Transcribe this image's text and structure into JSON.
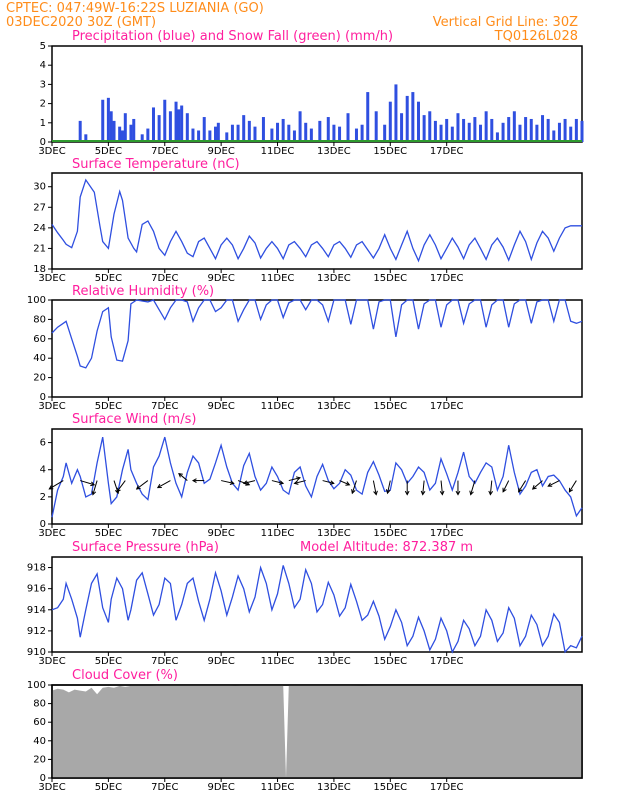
{
  "header": {
    "line1": "CPTEC:  047:49W-16:22S  LUZIANIA (GO)",
    "line2": "03DEC2020 30Z (GMT)",
    "grid_note": "Vertical Grid Line: 30Z",
    "run_id": "TQ0126L028"
  },
  "x_labels": [
    "3DEC",
    "5DEC",
    "7DEC",
    "9DEC",
    "11DEC",
    "13DEC",
    "15DEC",
    "17DEC"
  ],
  "colors": {
    "series": "#2f4fe0",
    "cloud": "#a8a8a8",
    "snow": "#2e9a2e",
    "title": "#ff1f9e",
    "header": "#ff8c1a",
    "wind_arrow": "#000000"
  },
  "chart_data": [
    {
      "type": "bar",
      "title": "Precipitation (blue) and Snow Fall (green) (mm/h)",
      "ylim": [
        0,
        5
      ],
      "yticks": [
        "0",
        "1",
        "2",
        "3",
        "4",
        "5"
      ],
      "series": [
        {
          "name": "Precipitation",
          "x_days": [
            1.0,
            1.2,
            1.8,
            2.0,
            2.1,
            2.2,
            2.4,
            2.5,
            2.6,
            2.8,
            2.9,
            3.2,
            3.4,
            3.6,
            3.8,
            4.0,
            4.2,
            4.4,
            4.5,
            4.6,
            4.8,
            5.0,
            5.2,
            5.4,
            5.6,
            5.8,
            5.9,
            6.2,
            6.4,
            6.6,
            6.8,
            7.0,
            7.2,
            7.5,
            7.8,
            8.0,
            8.2,
            8.4,
            8.6,
            8.8,
            9.0,
            9.2,
            9.5,
            9.8,
            10.0,
            10.2,
            10.5,
            10.8,
            11.0,
            11.2,
            11.5,
            11.8,
            12.0,
            12.2,
            12.4,
            12.6,
            12.8,
            13.0,
            13.2,
            13.4,
            13.6,
            13.8,
            14.0,
            14.2,
            14.4,
            14.6,
            14.8,
            15.0,
            15.2,
            15.4,
            15.6,
            15.8,
            16.0,
            16.2,
            16.4,
            16.6,
            16.8,
            17.0,
            17.2,
            17.4,
            17.6,
            17.8,
            18.0,
            18.2,
            18.4,
            18.6,
            18.8
          ],
          "values": [
            1.1,
            0.4,
            2.2,
            2.3,
            1.6,
            1.1,
            0.8,
            0.6,
            1.5,
            0.9,
            1.2,
            0.4,
            0.7,
            1.8,
            1.4,
            2.2,
            1.6,
            2.1,
            1.7,
            1.9,
            1.5,
            0.7,
            0.6,
            1.3,
            0.6,
            0.8,
            1.0,
            0.5,
            0.9,
            0.9,
            1.4,
            1.1,
            0.8,
            1.3,
            0.7,
            1.0,
            1.2,
            0.9,
            0.6,
            1.6,
            1.0,
            0.7,
            1.1,
            1.3,
            0.9,
            0.8,
            1.5,
            0.7,
            0.9,
            2.6,
            1.6,
            0.9,
            2.1,
            3.0,
            1.5,
            2.4,
            2.6,
            2.1,
            1.4,
            1.6,
            1.1,
            0.9,
            1.2,
            0.8,
            1.5,
            1.2,
            1.0,
            1.3,
            0.9,
            1.6,
            1.2,
            0.5,
            1.0,
            1.3,
            1.6,
            0.9,
            1.3,
            1.2,
            0.9,
            1.4,
            1.2,
            0.6,
            1.0,
            1.2,
            0.8,
            1.2,
            1.1
          ]
        },
        {
          "name": "Snow Fall",
          "x_days": [
            0.0,
            18.8
          ],
          "values": [
            0.0,
            0.0
          ]
        }
      ]
    },
    {
      "type": "line",
      "title": "Surface Temperature (nC)",
      "ylim": [
        18,
        32
      ],
      "yticks": [
        "18",
        "21",
        "24",
        "27",
        "30"
      ],
      "x_days": [
        0.0,
        0.2,
        0.4,
        0.5,
        0.7,
        0.9,
        1.0,
        1.2,
        1.5,
        1.7,
        1.8,
        2.0,
        2.2,
        2.4,
        2.5,
        2.7,
        2.9,
        3.0,
        3.2,
        3.4,
        3.6,
        3.8,
        4.0,
        4.2,
        4.4,
        4.6,
        4.8,
        5.0,
        5.2,
        5.4,
        5.6,
        5.8,
        6.0,
        6.2,
        6.4,
        6.6,
        6.8,
        7.0,
        7.2,
        7.4,
        7.6,
        7.8,
        8.0,
        8.2,
        8.4,
        8.6,
        8.8,
        9.0,
        9.2,
        9.4,
        9.6,
        9.8,
        10.0,
        10.2,
        10.4,
        10.6,
        10.8,
        11.0,
        11.2,
        11.4,
        11.6,
        11.8,
        12.0,
        12.2,
        12.4,
        12.6,
        12.8,
        13.0,
        13.2,
        13.4,
        13.6,
        13.8,
        14.0,
        14.2,
        14.4,
        14.6,
        14.8,
        15.0,
        15.2,
        15.4,
        15.6,
        15.8,
        16.0,
        16.2,
        16.4,
        16.6,
        16.8,
        17.0,
        17.2,
        17.4,
        17.6,
        17.8,
        18.0,
        18.2,
        18.4,
        18.6,
        18.8
      ],
      "values": [
        24.5,
        23.3,
        22.2,
        21.6,
        21.1,
        23.5,
        28.5,
        31.0,
        29.2,
        24.3,
        22.0,
        21.0,
        26.0,
        29.3,
        28.0,
        22.5,
        21.0,
        20.5,
        24.5,
        25.0,
        23.5,
        21.0,
        20.0,
        22.0,
        23.5,
        22.0,
        20.3,
        19.8,
        22.0,
        22.5,
        21.0,
        19.5,
        21.5,
        22.5,
        21.5,
        19.5,
        21.0,
        22.8,
        21.8,
        19.6,
        21.0,
        22.0,
        21.0,
        19.5,
        21.5,
        22.0,
        21.0,
        19.8,
        21.5,
        22.0,
        21.0,
        19.8,
        21.5,
        22.0,
        21.0,
        19.7,
        21.5,
        22.0,
        20.8,
        19.6,
        21.0,
        23.0,
        21.0,
        19.4,
        21.5,
        23.5,
        21.0,
        19.2,
        21.5,
        23.0,
        21.5,
        19.5,
        21.0,
        22.5,
        21.2,
        19.5,
        21.5,
        22.5,
        21.0,
        19.4,
        21.5,
        22.5,
        21.2,
        19.3,
        21.5,
        23.5,
        22.0,
        19.4,
        21.8,
        23.5,
        22.5,
        20.6,
        22.5,
        24.0,
        24.3,
        24.3,
        24.3
      ]
    },
    {
      "type": "line",
      "title": "Relative Humidity (%)",
      "ylim": [
        0,
        100
      ],
      "yticks": [
        "0",
        "20",
        "40",
        "60",
        "80",
        "100"
      ],
      "x_days": [
        0.0,
        0.2,
        0.4,
        0.5,
        0.7,
        0.9,
        1.0,
        1.2,
        1.4,
        1.6,
        1.8,
        2.0,
        2.1,
        2.3,
        2.5,
        2.7,
        2.8,
        3.0,
        3.2,
        3.4,
        3.6,
        3.8,
        4.0,
        4.2,
        4.4,
        4.6,
        4.8,
        5.0,
        5.2,
        5.4,
        5.6,
        5.8,
        6.0,
        6.2,
        6.4,
        6.6,
        6.8,
        7.0,
        7.2,
        7.4,
        7.6,
        7.8,
        8.0,
        8.2,
        8.4,
        8.6,
        8.8,
        9.0,
        9.2,
        9.4,
        9.6,
        9.8,
        10.0,
        10.2,
        10.4,
        10.6,
        10.8,
        11.0,
        11.2,
        11.4,
        11.6,
        11.8,
        12.0,
        12.2,
        12.4,
        12.6,
        12.8,
        13.0,
        13.2,
        13.4,
        13.6,
        13.8,
        14.0,
        14.2,
        14.4,
        14.6,
        14.8,
        15.0,
        15.2,
        15.4,
        15.6,
        15.8,
        16.0,
        16.2,
        16.4,
        16.6,
        16.8,
        17.0,
        17.2,
        17.4,
        17.6,
        17.8,
        18.0,
        18.2,
        18.4,
        18.6,
        18.8
      ],
      "values": [
        66,
        72,
        76,
        78,
        60,
        42,
        32,
        30,
        40,
        68,
        88,
        92,
        62,
        38,
        37,
        58,
        96,
        100,
        99,
        98,
        100,
        90,
        80,
        92,
        100,
        100,
        98,
        78,
        92,
        100,
        100,
        88,
        92,
        100,
        100,
        78,
        90,
        100,
        100,
        80,
        95,
        100,
        100,
        82,
        97,
        100,
        100,
        90,
        100,
        100,
        95,
        78,
        100,
        100,
        100,
        75,
        100,
        100,
        100,
        70,
        98,
        100,
        100,
        62,
        95,
        100,
        100,
        70,
        96,
        100,
        100,
        72,
        95,
        100,
        100,
        76,
        96,
        100,
        100,
        72,
        95,
        100,
        100,
        72,
        96,
        100,
        100,
        76,
        98,
        100,
        100,
        78,
        100,
        100,
        78,
        76,
        78
      ]
    },
    {
      "type": "line",
      "title": "Surface Wind (m/s)",
      "ylim": [
        0,
        7
      ],
      "yticks": [
        "0",
        "2",
        "4",
        "6"
      ],
      "x_days": [
        0.0,
        0.2,
        0.4,
        0.5,
        0.7,
        0.9,
        1.0,
        1.2,
        1.4,
        1.6,
        1.8,
        2.0,
        2.1,
        2.3,
        2.5,
        2.7,
        2.8,
        3.0,
        3.2,
        3.4,
        3.6,
        3.8,
        4.0,
        4.2,
        4.4,
        4.6,
        4.8,
        5.0,
        5.2,
        5.4,
        5.6,
        5.8,
        6.0,
        6.2,
        6.4,
        6.6,
        6.8,
        7.0,
        7.2,
        7.4,
        7.6,
        7.8,
        8.0,
        8.2,
        8.4,
        8.6,
        8.8,
        9.0,
        9.2,
        9.4,
        9.6,
        9.8,
        10.0,
        10.2,
        10.4,
        10.6,
        10.8,
        11.0,
        11.2,
        11.4,
        11.6,
        11.8,
        12.0,
        12.2,
        12.4,
        12.6,
        12.8,
        13.0,
        13.2,
        13.4,
        13.6,
        13.8,
        14.0,
        14.2,
        14.4,
        14.6,
        14.8,
        15.0,
        15.2,
        15.4,
        15.6,
        15.8,
        16.0,
        16.2,
        16.4,
        16.6,
        16.8,
        17.0,
        17.2,
        17.4,
        17.6,
        17.8,
        18.0,
        18.2,
        18.4,
        18.6,
        18.8
      ],
      "values": [
        0.5,
        2.5,
        3.5,
        4.5,
        3.0,
        4.0,
        3.5,
        2.0,
        2.2,
        4.5,
        6.4,
        3.0,
        1.5,
        2.0,
        4.0,
        5.5,
        4.0,
        3.0,
        2.2,
        1.8,
        4.2,
        5.0,
        6.4,
        4.5,
        3.0,
        2.0,
        3.8,
        5.0,
        4.5,
        3.0,
        3.3,
        4.5,
        5.8,
        4.2,
        3.0,
        2.5,
        4.3,
        5.2,
        3.5,
        2.5,
        3.0,
        4.2,
        3.5,
        2.5,
        2.2,
        3.8,
        4.2,
        2.8,
        2.0,
        3.5,
        4.4,
        3.2,
        2.6,
        3.0,
        4.0,
        3.6,
        2.5,
        2.2,
        3.8,
        4.6,
        3.6,
        2.4,
        2.5,
        4.5,
        4.0,
        3.0,
        3.5,
        4.2,
        3.8,
        2.5,
        3.0,
        4.8,
        3.7,
        2.5,
        3.8,
        5.3,
        3.5,
        3.0,
        3.8,
        4.5,
        4.2,
        2.5,
        3.5,
        5.8,
        3.8,
        2.2,
        2.8,
        3.8,
        4.0,
        2.8,
        3.5,
        3.6,
        3.2,
        2.5,
        2.0,
        0.6,
        1.2
      ],
      "arrows": [
        {
          "day": 0.4,
          "dx": -1.0,
          "dy": 0.6
        },
        {
          "day": 1.0,
          "dx": 1.0,
          "dy": 0.3
        },
        {
          "day": 1.6,
          "dx": -0.3,
          "dy": 1.0
        },
        {
          "day": 2.2,
          "dx": 0.3,
          "dy": 0.9
        },
        {
          "day": 2.6,
          "dx": -0.6,
          "dy": 0.8
        },
        {
          "day": 3.4,
          "dx": -0.8,
          "dy": 0.6
        },
        {
          "day": 4.2,
          "dx": -0.9,
          "dy": 0.5
        },
        {
          "day": 4.8,
          "dx": -0.6,
          "dy": -0.5
        },
        {
          "day": 5.4,
          "dx": -0.8,
          "dy": 0.0
        },
        {
          "day": 6.0,
          "dx": 0.9,
          "dy": 0.2
        },
        {
          "day": 6.6,
          "dx": 0.8,
          "dy": 0.3
        },
        {
          "day": 7.2,
          "dx": -0.8,
          "dy": 0.2
        },
        {
          "day": 7.8,
          "dx": 0.8,
          "dy": 0.2
        },
        {
          "day": 8.4,
          "dx": 0.8,
          "dy": -0.2
        },
        {
          "day": 9.0,
          "dx": -0.8,
          "dy": 0.2
        },
        {
          "day": 9.6,
          "dx": 0.8,
          "dy": 0.2
        },
        {
          "day": 10.2,
          "dx": 0.7,
          "dy": 0.3
        },
        {
          "day": 10.8,
          "dx": -0.3,
          "dy": 0.9
        },
        {
          "day": 11.4,
          "dx": 0.2,
          "dy": 1.0
        },
        {
          "day": 12.0,
          "dx": -0.2,
          "dy": 0.9
        },
        {
          "day": 12.6,
          "dx": 0.0,
          "dy": 1.0
        },
        {
          "day": 13.2,
          "dx": -0.1,
          "dy": 1.0
        },
        {
          "day": 13.8,
          "dx": 0.1,
          "dy": 1.0
        },
        {
          "day": 14.4,
          "dx": 0.0,
          "dy": 1.0
        },
        {
          "day": 15.0,
          "dx": -0.3,
          "dy": 1.0
        },
        {
          "day": 15.6,
          "dx": -0.1,
          "dy": 1.0
        },
        {
          "day": 16.2,
          "dx": -0.4,
          "dy": 0.8
        },
        {
          "day": 16.8,
          "dx": -0.5,
          "dy": 0.8
        },
        {
          "day": 17.4,
          "dx": -0.7,
          "dy": 0.6
        },
        {
          "day": 18.0,
          "dx": -0.8,
          "dy": 0.4
        },
        {
          "day": 18.6,
          "dx": -0.5,
          "dy": 0.8
        }
      ]
    },
    {
      "type": "line",
      "title": "Surface Pressure (hPa)",
      "subtitle": "Model Altitude: 872.387 m",
      "ylim": [
        910,
        919
      ],
      "yticks": [
        "910",
        "912",
        "914",
        "916",
        "918"
      ],
      "x_days": [
        0.0,
        0.2,
        0.4,
        0.5,
        0.7,
        0.9,
        1.0,
        1.2,
        1.4,
        1.6,
        1.8,
        2.0,
        2.1,
        2.3,
        2.5,
        2.7,
        2.8,
        3.0,
        3.2,
        3.4,
        3.6,
        3.8,
        4.0,
        4.2,
        4.4,
        4.6,
        4.8,
        5.0,
        5.2,
        5.4,
        5.6,
        5.8,
        6.0,
        6.2,
        6.4,
        6.6,
        6.8,
        7.0,
        7.2,
        7.4,
        7.6,
        7.8,
        8.0,
        8.2,
        8.4,
        8.6,
        8.8,
        9.0,
        9.2,
        9.4,
        9.6,
        9.8,
        10.0,
        10.2,
        10.4,
        10.6,
        10.8,
        11.0,
        11.2,
        11.4,
        11.6,
        11.8,
        12.0,
        12.2,
        12.4,
        12.6,
        12.8,
        13.0,
        13.2,
        13.4,
        13.6,
        13.8,
        14.0,
        14.2,
        14.4,
        14.6,
        14.8,
        15.0,
        15.2,
        15.4,
        15.6,
        15.8,
        16.0,
        16.2,
        16.4,
        16.6,
        16.8,
        17.0,
        17.2,
        17.4,
        17.6,
        17.8,
        18.0,
        18.2,
        18.4,
        18.6,
        18.8
      ],
      "values": [
        914.0,
        914.2,
        915.0,
        916.5,
        915.0,
        913.2,
        911.4,
        914.0,
        916.5,
        917.4,
        914.2,
        912.8,
        915.0,
        917.0,
        916.0,
        913.0,
        914.0,
        916.8,
        917.5,
        915.5,
        913.5,
        914.5,
        917.0,
        916.5,
        913.0,
        914.5,
        916.5,
        917.0,
        914.8,
        913.0,
        915.0,
        917.5,
        915.8,
        913.5,
        915.2,
        917.2,
        916.0,
        913.8,
        915.2,
        918.0,
        916.5,
        914.0,
        915.5,
        918.2,
        916.5,
        914.2,
        915.0,
        917.8,
        916.5,
        913.8,
        914.5,
        916.6,
        915.4,
        913.4,
        914.2,
        916.4,
        914.8,
        913.0,
        913.5,
        914.8,
        913.4,
        911.2,
        912.4,
        914.0,
        912.8,
        910.6,
        911.5,
        913.3,
        912.0,
        910.2,
        911.2,
        913.2,
        912.0,
        910.0,
        911.0,
        913.0,
        912.2,
        910.6,
        911.5,
        914.0,
        913.0,
        911.0,
        911.8,
        914.2,
        913.2,
        910.6,
        911.5,
        913.5,
        912.6,
        910.6,
        911.5,
        913.6,
        912.8,
        910.0,
        910.6,
        910.4,
        911.5
      ]
    },
    {
      "type": "area",
      "title": "Cloud Cover (%)",
      "ylim": [
        0,
        100
      ],
      "yticks": [
        "0",
        "20",
        "40",
        "60",
        "80",
        "100"
      ],
      "x_days": [
        0.0,
        0.2,
        0.4,
        0.6,
        0.8,
        1.0,
        1.2,
        1.4,
        1.6,
        1.8,
        2.0,
        2.2,
        2.4,
        2.6,
        2.8,
        3.0,
        3.5,
        4.0,
        4.5,
        5.0,
        5.5,
        6.0,
        6.5,
        7.0,
        7.5,
        8.0,
        8.2,
        8.3,
        8.4,
        8.6,
        9.0,
        10.0,
        11.0,
        12.0,
        13.0,
        14.0,
        15.0,
        16.0,
        17.0,
        18.0,
        18.8
      ],
      "values": [
        94,
        96,
        95,
        92,
        95,
        94,
        93,
        97,
        90,
        97,
        98,
        97,
        99,
        98,
        99,
        99,
        99,
        100,
        100,
        100,
        100,
        100,
        99,
        100,
        100,
        100,
        100,
        0,
        100,
        100,
        100,
        100,
        99,
        100,
        100,
        100,
        100,
        100,
        100,
        100,
        100
      ]
    }
  ]
}
